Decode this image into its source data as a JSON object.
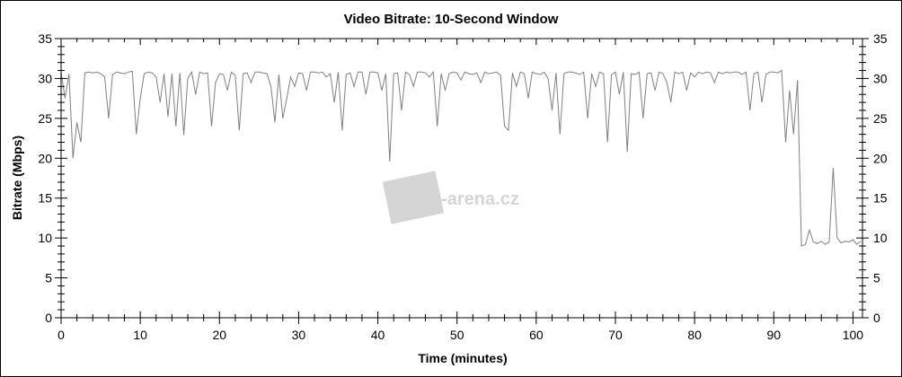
{
  "chart_data": {
    "type": "line",
    "title": "Video Bitrate: 10-Second Window",
    "xlabel": "Time (minutes)",
    "ylabel": "Bitrate (Mbps)",
    "xlim": [
      0,
      101.2
    ],
    "ylim": [
      0,
      35
    ],
    "xticks": [
      "0",
      "10",
      "20",
      "30",
      "40",
      "50",
      "60",
      "70",
      "80",
      "90",
      "100"
    ],
    "yticks": [
      "0",
      "5",
      "10",
      "15",
      "20",
      "25",
      "30",
      "35"
    ],
    "grid": false,
    "legend": "none",
    "line_color": "#808080",
    "watermark": "Film-arena.cz",
    "x_step_minutes": 0.5,
    "series": [
      {
        "values": [
          30.8,
          27.5,
          30.6,
          20.0,
          24.5,
          22.0,
          30.7,
          30.8,
          30.7,
          30.8,
          30.6,
          30.2,
          25.0,
          30.5,
          30.8,
          30.7,
          30.6,
          30.8,
          30.9,
          23.0,
          27.5,
          30.6,
          30.8,
          30.7,
          30.2,
          27.0,
          30.6,
          25.2,
          30.6,
          24.0,
          30.7,
          22.9,
          30.0,
          30.8,
          28.0,
          30.8,
          30.6,
          30.7,
          24.0,
          29.5,
          30.6,
          30.5,
          28.5,
          30.8,
          30.4,
          23.5,
          30.6,
          30.7,
          29.5,
          30.8,
          30.8,
          30.7,
          30.6,
          29.0,
          24.5,
          30.5,
          25.0,
          27.5,
          30.2,
          29.0,
          30.7,
          30.6,
          28.5,
          30.8,
          30.8,
          30.7,
          30.8,
          30.2,
          30.6,
          27.0,
          30.8,
          23.5,
          30.5,
          30.7,
          29.0,
          30.8,
          30.8,
          28.0,
          30.8,
          30.8,
          30.7,
          28.5,
          30.6,
          19.6,
          30.6,
          30.7,
          26.0,
          30.8,
          30.5,
          29.0,
          30.8,
          30.8,
          30.7,
          30.2,
          30.8,
          24.0,
          30.6,
          28.5,
          30.6,
          30.8,
          30.7,
          29.8,
          30.8,
          30.6,
          30.5,
          30.7,
          29.5,
          30.8,
          30.6,
          30.7,
          30.8,
          30.4,
          24.0,
          23.5,
          30.7,
          29.0,
          30.8,
          30.6,
          27.5,
          30.8,
          30.6,
          30.5,
          30.8,
          30.0,
          26.0,
          30.7,
          23.0,
          30.6,
          30.8,
          30.8,
          30.7,
          30.5,
          30.8,
          25.0,
          30.6,
          29.0,
          30.8,
          30.6,
          22.0,
          30.5,
          30.8,
          28.0,
          30.8,
          20.8,
          30.6,
          30.5,
          30.8,
          25.0,
          30.6,
          30.7,
          28.5,
          30.8,
          30.6,
          29.5,
          27.0,
          30.8,
          30.6,
          30.8,
          28.5,
          30.7,
          30.2,
          30.8,
          30.6,
          30.8,
          30.7,
          29.5,
          30.8,
          30.6,
          30.8,
          30.7,
          30.8,
          30.8,
          30.5,
          30.8,
          26.0,
          30.6,
          30.8,
          27.0,
          30.5,
          30.8,
          30.8,
          30.7,
          31.0,
          22.0,
          28.5,
          23.0,
          29.8,
          9.0,
          9.2,
          11.0,
          9.5,
          9.3,
          9.6,
          9.2,
          9.5,
          18.8,
          10.0,
          9.4,
          9.6,
          9.5,
          9.8,
          9.2,
          9.6
        ]
      }
    ]
  }
}
